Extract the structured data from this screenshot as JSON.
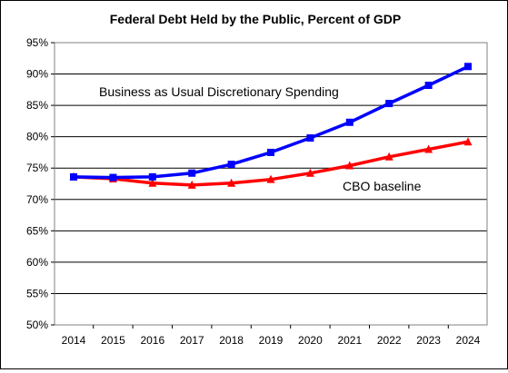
{
  "chart_data": {
    "type": "line",
    "title": "Federal Debt Held by the Public, Percent of GDP",
    "xlabel": "",
    "ylabel": "",
    "x": [
      2014,
      2015,
      2016,
      2017,
      2018,
      2019,
      2020,
      2021,
      2022,
      2023,
      2024
    ],
    "ylim": [
      50,
      95
    ],
    "yticks": [
      "50%",
      "55%",
      "60%",
      "65%",
      "70%",
      "75%",
      "80%",
      "85%",
      "90%",
      "95%"
    ],
    "yticks_values": [
      50,
      55,
      60,
      65,
      70,
      75,
      80,
      85,
      90,
      95
    ],
    "grid": "horizontal",
    "legend": "none",
    "series": [
      {
        "name": "Business as Usual Discretionary Spending",
        "color": "#0000ff",
        "marker": "square",
        "values": [
          73.6,
          73.5,
          73.6,
          74.2,
          75.6,
          77.5,
          79.8,
          82.3,
          85.3,
          88.2,
          91.2
        ]
      },
      {
        "name": "CBO baseline",
        "color": "#ff0000",
        "marker": "triangle",
        "values": [
          73.6,
          73.3,
          72.6,
          72.3,
          72.6,
          73.2,
          74.2,
          75.4,
          76.8,
          78.0,
          79.2
        ]
      }
    ]
  }
}
